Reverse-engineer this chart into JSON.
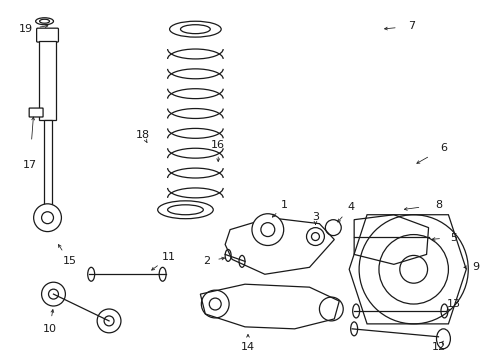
{
  "background_color": "#ffffff",
  "line_color": "#1a1a1a",
  "label_color": "#1a1a1a",
  "fig_w": 4.9,
  "fig_h": 3.6,
  "dpi": 100
}
